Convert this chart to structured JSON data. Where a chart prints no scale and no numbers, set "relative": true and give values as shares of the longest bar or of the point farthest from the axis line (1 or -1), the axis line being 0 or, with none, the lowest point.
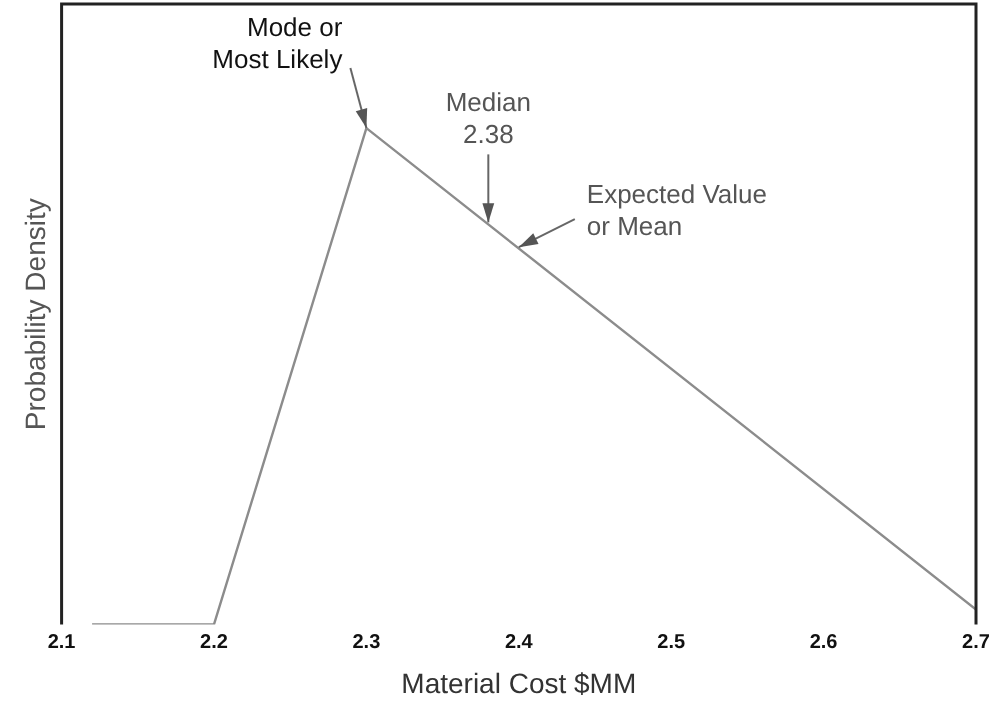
{
  "chart_data": {
    "type": "line",
    "xlabel": "Material Cost $MM",
    "ylabel": "Probability Density",
    "relative": true,
    "x": [
      2.12,
      2.2,
      2.3,
      2.7
    ],
    "series": [
      {
        "color": "#8c8c8c",
        "values": [
          0,
          0,
          1,
          0.03
        ]
      }
    ],
    "xlim": [
      2.1,
      2.7
    ],
    "xticks": [
      2.1,
      2.2,
      2.3,
      2.4,
      2.5,
      2.6,
      2.7
    ],
    "grid": false,
    "legend": false,
    "marker": "none",
    "line_style": "solid",
    "annotations": [
      {
        "text": "Mode or\nMost Likely",
        "x": 2.3,
        "y": 1
      },
      {
        "text": "Median\n2.38",
        "x": 2.38,
        "y": 0.81
      },
      {
        "text": "Expected Value\nor Mean",
        "x": 2.4,
        "y": 0.76
      }
    ]
  }
}
